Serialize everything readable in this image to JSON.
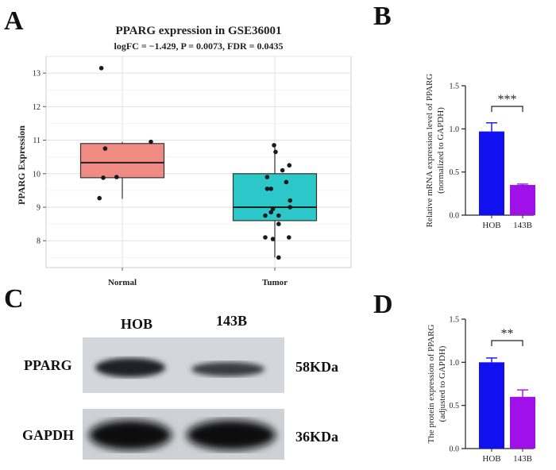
{
  "panels": {
    "a": "A",
    "b": "B",
    "c": "C",
    "d": "D"
  },
  "colors": {
    "normal_box": "#f08b84",
    "tumor_box": "#2cc7c9",
    "hob_bar": "#1010f0",
    "b143_bar": "#a010e8"
  },
  "chart_data": [
    {
      "id": "A",
      "type": "box",
      "title": "PPARG expression in GSE36001",
      "subtitle": "logFC = −1.429, P = 0.0073, FDR = 0.0435",
      "xlabel": "",
      "ylabel": "PPARG Expression",
      "categories": [
        "Normal",
        "Tumor"
      ],
      "ylim": [
        7.2,
        13.5
      ],
      "yticks": [
        "8",
        "9",
        "10",
        "11",
        "12",
        "13"
      ],
      "grid": true,
      "boxes": [
        {
          "name": "Normal",
          "whisker_low": 9.25,
          "q1": 9.88,
          "median": 10.33,
          "q3": 10.9,
          "whisker_high": 10.95
        },
        {
          "name": "Tumor",
          "whisker_low": 7.5,
          "q1": 8.6,
          "median": 9.0,
          "q3": 10.0,
          "whisker_high": 10.85
        }
      ],
      "points": [
        {
          "group": "Normal",
          "y": [
            13.15,
            10.95,
            10.75,
            9.88,
            9.9,
            9.27
          ]
        },
        {
          "group": "Tumor",
          "y": [
            10.85,
            10.65,
            10.25,
            10.1,
            9.9,
            9.75,
            9.55,
            9.55,
            9.2,
            9.0,
            8.95,
            8.85,
            8.75,
            8.75,
            8.5,
            8.1,
            8.1,
            8.05,
            7.5
          ]
        }
      ]
    },
    {
      "id": "B",
      "type": "bar",
      "ylabel": "Relative mRNA expression level of PPARG",
      "ylabel2": "(normalized to GAPDH)",
      "categories": [
        "HOB",
        "143B"
      ],
      "values": [
        0.97,
        0.35
      ],
      "errors": [
        0.1,
        0.01
      ],
      "ylim": [
        0,
        1.5
      ],
      "yticks": [
        "0.0",
        "0.5",
        "1.0",
        "1.5"
      ],
      "significance": "***"
    },
    {
      "id": "D",
      "type": "bar",
      "ylabel": "The protein expression of PPARG",
      "ylabel2": "(adjusted to GAPDH)",
      "categories": [
        "HOB",
        "143B"
      ],
      "values": [
        1.0,
        0.6
      ],
      "errors": [
        0.05,
        0.08
      ],
      "ylim": [
        0,
        1.5
      ],
      "yticks": [
        "0.0",
        "0.5",
        "1.0",
        "1.5"
      ],
      "significance": "**"
    }
  ],
  "blot": {
    "lanes": [
      "HOB",
      "143B"
    ],
    "rows": [
      {
        "protein": "PPARG",
        "size": "58KDa"
      },
      {
        "protein": "GAPDH",
        "size": "36KDa"
      }
    ]
  }
}
